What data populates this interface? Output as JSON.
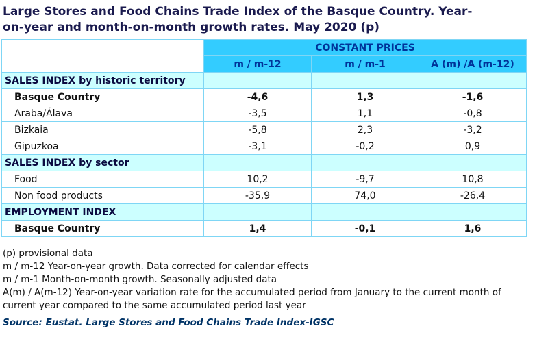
{
  "title_lines": [
    "Large Stores and Food Chains Trade Index of the Basque Country. Year-",
    "on-year and month-on-month growth rates. May 2020 (p)"
  ],
  "table": {
    "header_group": "CONSTANT PRICES",
    "columns": [
      "m / m-12",
      "m / m-1",
      "A (m) /A (m-12)"
    ],
    "sections": [
      {
        "label": "SALES INDEX by historic territory",
        "rows": [
          {
            "label": "Basque Country",
            "bold": true,
            "values": [
              "-4,6",
              "1,3",
              "-1,6"
            ]
          },
          {
            "label": "Araba/Álava",
            "bold": false,
            "values": [
              "-3,5",
              "1,1",
              "-0,8"
            ]
          },
          {
            "label": "Bizkaia",
            "bold": false,
            "values": [
              "-5,8",
              "2,3",
              "-3,2"
            ]
          },
          {
            "label": "Gipuzkoa",
            "bold": false,
            "values": [
              "-3,1",
              "-0,2",
              "0,9"
            ]
          }
        ]
      },
      {
        "label": "SALES INDEX by sector",
        "rows": [
          {
            "label": "Food",
            "bold": false,
            "values": [
              "10,2",
              "-9,7",
              "10,8"
            ]
          },
          {
            "label": "Non food products",
            "bold": false,
            "values": [
              "-35,9",
              "74,0",
              "-26,4"
            ]
          }
        ]
      },
      {
        "label": "EMPLOYMENT INDEX",
        "rows": [
          {
            "label": "Basque Country",
            "bold": true,
            "values": [
              "1,4",
              "-0,1",
              "1,6"
            ]
          }
        ]
      }
    ]
  },
  "notes": [
    "(p) provisional data",
    "m / m-12 Year-on-year growth. Data corrected for calendar effects",
    "m / m-1 Month-on-month growth. Seasonally adjusted data",
    "A(m) / A(m-12) Year-on-year variation rate for the accumulated period from January to the current month of current year compared to the same accumulated period last year"
  ],
  "source": "Source: Eustat. Large Stores and Food Chains Trade Index-IGSC"
}
